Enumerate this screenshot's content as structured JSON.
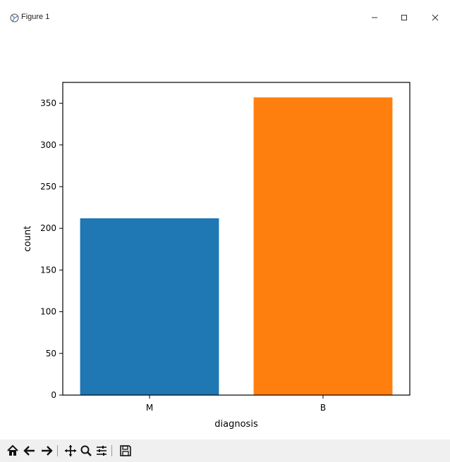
{
  "window": {
    "title": "Figure 1",
    "minimize_icon": "minimize-icon",
    "maximize_icon": "maximize-icon",
    "close_icon": "close-icon"
  },
  "toolbar": {
    "buttons": [
      {
        "name": "home",
        "icon": "home-icon"
      },
      {
        "name": "back",
        "icon": "arrow-left-icon"
      },
      {
        "name": "forward",
        "icon": "arrow-right-icon"
      },
      {
        "name": "pan",
        "icon": "move-icon"
      },
      {
        "name": "zoom",
        "icon": "magnifier-icon"
      },
      {
        "name": "configure",
        "icon": "sliders-icon"
      },
      {
        "name": "save",
        "icon": "floppy-icon"
      }
    ]
  },
  "chart_data": {
    "type": "bar",
    "categories": [
      "M",
      "B"
    ],
    "values": [
      212,
      357
    ],
    "colors": [
      "#1f77b4",
      "#ff7f0e"
    ],
    "xlabel": "diagnosis",
    "ylabel": "count",
    "ylim": [
      0,
      375
    ],
    "yticks": [
      0,
      50,
      100,
      150,
      200,
      250,
      300,
      350
    ],
    "grid": false
  }
}
